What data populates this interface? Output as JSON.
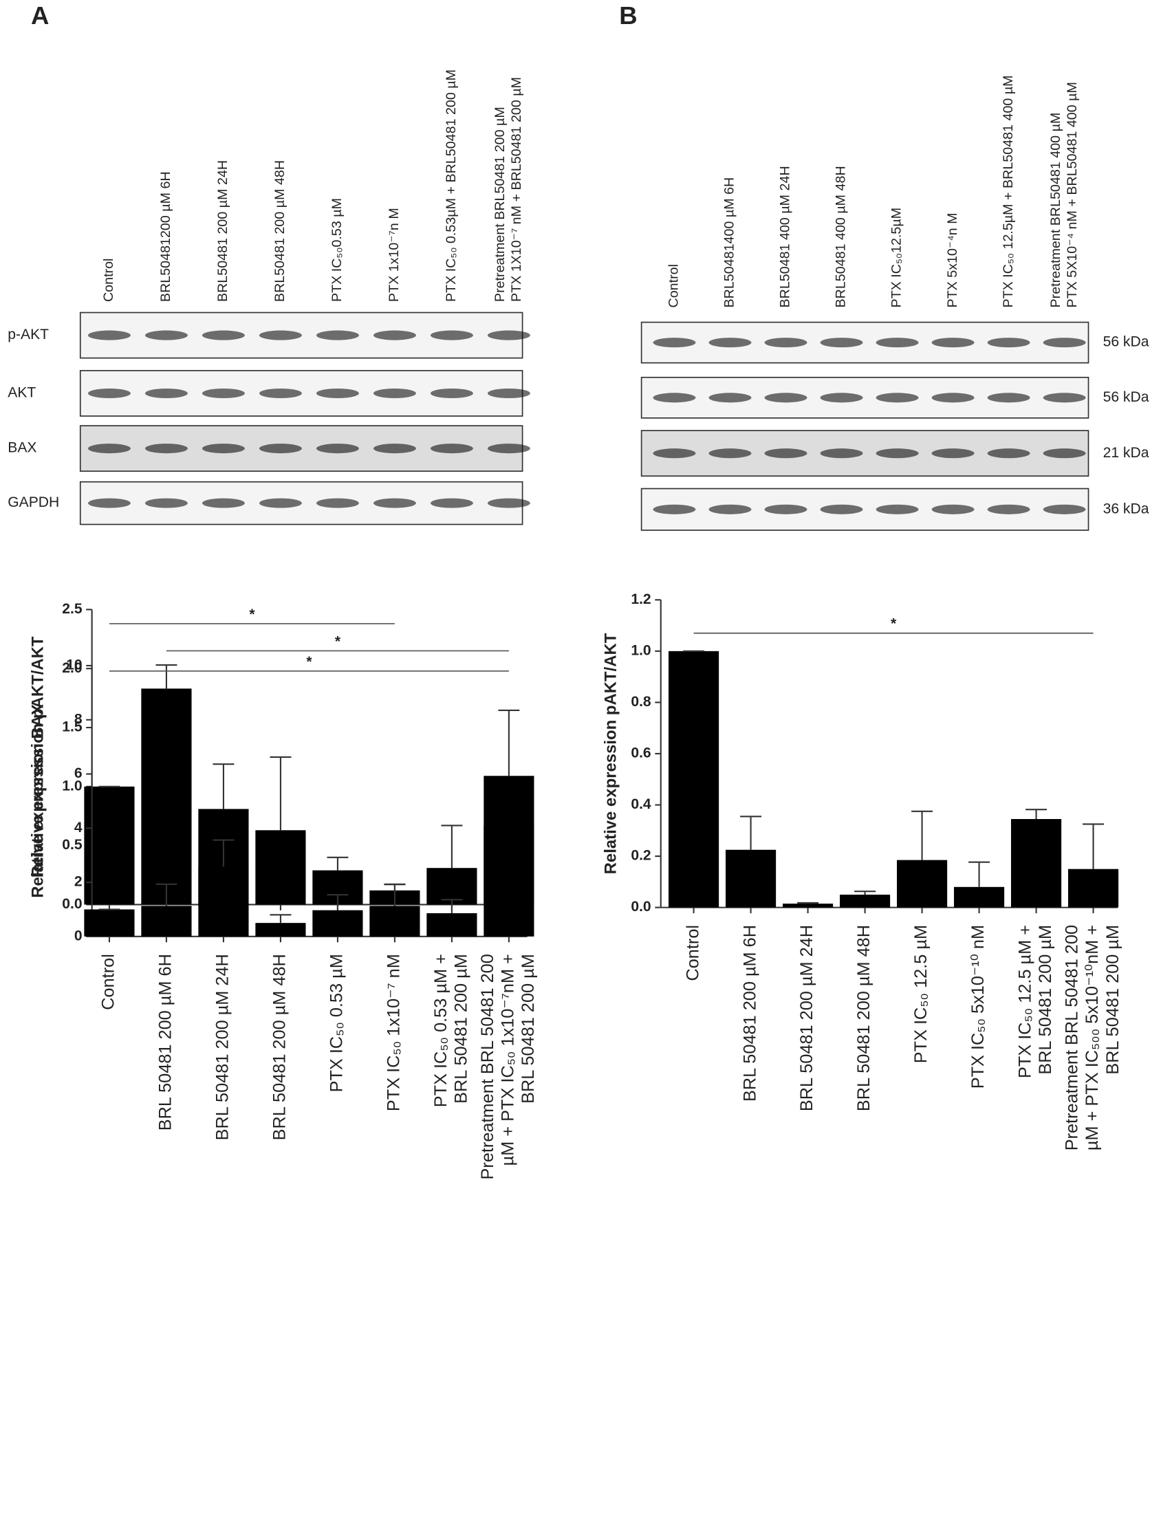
{
  "panel_labels": [
    "A",
    "B"
  ],
  "blots": [
    {
      "lanes": [
        [
          "Control"
        ],
        [
          "BRL50481200 µM 6H"
        ],
        [
          "BRL50481 200 µM 24H"
        ],
        [
          "BRL50481 200 µM 48H"
        ],
        [
          "PTX IC₅₀0.53 µM"
        ],
        [
          "PTX  1x10⁻⁷n M"
        ],
        [
          "PTX IC₅₀ 0.53µM + BRL50481  200 µM"
        ],
        [
          "Pretreatment  BRL50481 200 µM",
          "PTX 1X10⁻⁷ nM + BRL50481  200 µM"
        ]
      ],
      "rows": [
        "p-AKT",
        "AKT",
        "BAX",
        "GAPDH"
      ]
    },
    {
      "lanes": [
        [
          "Control"
        ],
        [
          "BRL50481400 µM 6H"
        ],
        [
          "BRL50481 400 µM 24H"
        ],
        [
          "BRL50481 400 µM 48H"
        ],
        [
          "PTX  IC₅₀12.5µM"
        ],
        [
          "PTX  5x10⁻⁴n M"
        ],
        [
          "PTX IC₅₀  12.5µM +  BRL50481  400 µM"
        ],
        [
          "Pretreatment  BRL50481 400 µM",
          "PTX 5X10⁻⁴ nM +  BRL50481  400 µM"
        ]
      ],
      "sizes": [
        "56 kDa",
        "56 kDa",
        "21 kDa",
        "36 kDa"
      ]
    }
  ],
  "chart_data": [
    {
      "type": "bar",
      "ylabel": "Relative expression pAKT/AKT",
      "color": "#000000",
      "categories": [
        null,
        null,
        null,
        null,
        null,
        null,
        null,
        null
      ],
      "values": [
        1.0,
        1.83,
        0.81,
        0.63,
        0.29,
        0.12,
        0.31,
        0.67
      ],
      "errors": [
        0,
        0.2,
        0.38,
        0.62,
        0.11,
        0.05,
        0.36,
        0.13
      ],
      "ylim": [
        0,
        2.5
      ],
      "yticks": [
        {
          "value": 0,
          "label": "0.0"
        },
        0.5,
        {
          "value": 1,
          "label": "1.0"
        },
        1.5,
        {
          "value": 2,
          "label": "2.0"
        },
        2.5
      ],
      "annotations": [
        {
          "text": "*",
          "from": 0,
          "to": 5,
          "y": 2.38
        },
        {
          "text": "*",
          "from": 1,
          "to": 7,
          "y": 2.15
        }
      ]
    },
    {
      "type": "bar",
      "ylabel": "Relative expression BAX",
      "color": "#000000",
      "categories": [
        [
          "Control"
        ],
        [
          "BRL 50481 200 µM 6H"
        ],
        [
          "BRL 50481 200 µM 24H"
        ],
        [
          "BRL 50481 200 µM 48H"
        ],
        [
          "PTX IC₅₀ 0.53 µM"
        ],
        [
          "PTX IC₅₀ 1x10⁻⁷ nM"
        ],
        [
          "PTX IC₅₀ 0.53 µM +",
          "BRL 50481 200 µM"
        ],
        [
          "Pretreatment BRL 50481 200",
          "µM + PTX  IC₅₀ 1x10⁻⁷nM +",
          "BRL 50481 200 µM"
        ]
      ],
      "values": [
        1.0,
        1.13,
        2.58,
        0.5,
        0.97,
        1.13,
        0.86,
        5.93
      ],
      "errors": [
        0,
        0.8,
        0.98,
        0.3,
        0.57,
        0.8,
        0.5,
        2.42
      ],
      "ylim": [
        0,
        10
      ],
      "yticks": [
        0,
        2,
        4,
        6,
        8,
        10
      ],
      "annotations": [
        {
          "text": "*",
          "from": 0,
          "to": 7,
          "y": 9.8
        }
      ]
    },
    {
      "type": "bar",
      "ylabel": "Relative expression pAKT/AKT",
      "color": "#000000",
      "categories": [
        [
          "Control"
        ],
        [
          "BRL 50481 200 µM 6H"
        ],
        [
          "BRL 50481 200 µM 24H"
        ],
        [
          "BRL 50481 200 µM 48H"
        ],
        [
          "PTX IC₅₀ 12.5 µM"
        ],
        [
          "PTX IC₅₀ 5x10⁻¹⁰ nM"
        ],
        [
          "PTX IC₅₀ 12.5 µM +",
          "BRL 50481 200 µM"
        ],
        [
          "Pretreatment BRL 50481 200",
          "µM + PTX  IC₅₀₀ 5x10⁻¹⁰nM +",
          "BRL 50481 200 µM"
        ]
      ],
      "values": [
        1.0,
        0.225,
        0.015,
        0.05,
        0.185,
        0.08,
        0.345,
        0.15
      ],
      "errors": [
        0,
        0.13,
        0.003,
        0.013,
        0.19,
        0.097,
        0.037,
        0.175
      ],
      "ylim": [
        0,
        1.2
      ],
      "yticks": [
        {
          "value": 0,
          "label": "0.0"
        },
        0.2,
        0.4,
        0.6,
        0.8,
        {
          "value": 1,
          "label": "1.0"
        },
        1.2
      ],
      "annotations": [
        {
          "text": "*",
          "from": 0,
          "to": 7,
          "y": 1.07
        }
      ]
    }
  ]
}
